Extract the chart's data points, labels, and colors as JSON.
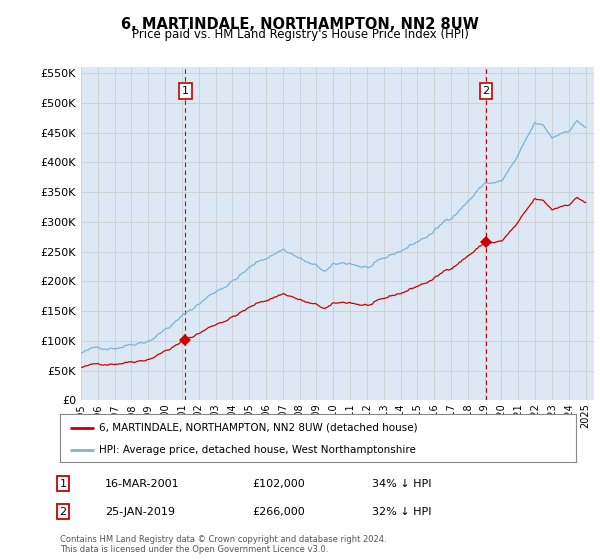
{
  "title": "6, MARTINDALE, NORTHAMPTON, NN2 8UW",
  "subtitle": "Price paid vs. HM Land Registry's House Price Index (HPI)",
  "ylim": [
    0,
    560000
  ],
  "yticks": [
    0,
    50000,
    100000,
    150000,
    200000,
    250000,
    300000,
    350000,
    400000,
    450000,
    500000,
    550000
  ],
  "hpi_color": "#7ab4d8",
  "price_color": "#cc0000",
  "marker_color": "#cc0000",
  "vline_color": "#cc0000",
  "grid_color": "#c8c8c8",
  "background_color": "#ffffff",
  "plot_bg_color": "#dce9f5",
  "sale1_x": 2001.21,
  "sale1_price": 102000,
  "sale2_x": 2019.07,
  "sale2_price": 266000,
  "legend_entries": [
    "6, MARTINDALE, NORTHAMPTON, NN2 8UW (detached house)",
    "HPI: Average price, detached house, West Northamptonshire"
  ],
  "annotation1": [
    "1",
    "16-MAR-2001",
    "£102,000",
    "34% ↓ HPI"
  ],
  "annotation2": [
    "2",
    "25-JAN-2019",
    "£266,000",
    "32% ↓ HPI"
  ],
  "footnote": "Contains HM Land Registry data © Crown copyright and database right 2024.\nThis data is licensed under the Open Government Licence v3.0."
}
